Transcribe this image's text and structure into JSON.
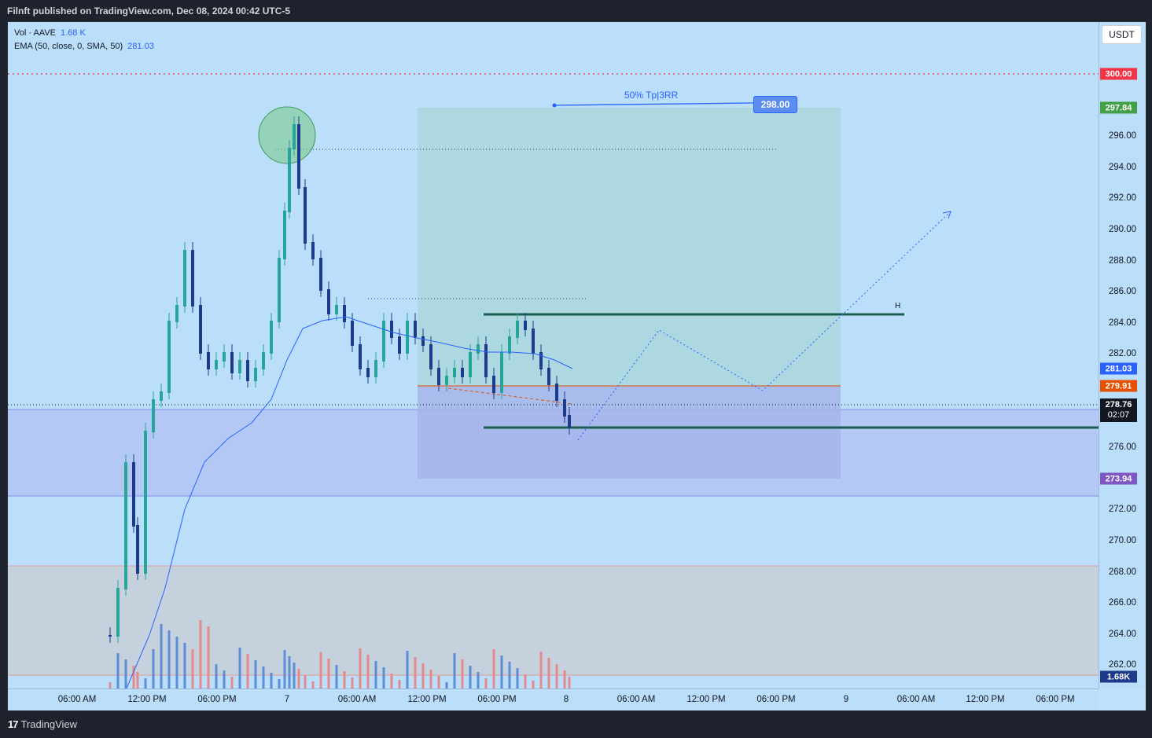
{
  "header": {
    "published": "Filnft published on TradingView.com, Dec 08, 2024 00:42 UTC-5"
  },
  "legend": {
    "vol_label": "Vol · AAVE",
    "vol_value": "1.68 K",
    "ema_label": "EMA (50, close, 0, SMA, 50)",
    "ema_value": "281.03"
  },
  "currency": "USDT",
  "price_ticks": [
    "296.00",
    "294.00",
    "292.00",
    "290.00",
    "288.00",
    "286.00",
    "284.00",
    "282.00",
    "276.00",
    "272.00",
    "270.00",
    "268.00",
    "266.00",
    "264.00",
    "262.00"
  ],
  "price_labels": {
    "p300": "300.00",
    "p297": "297.84",
    "ema": "281.03",
    "p279": "279.91",
    "last": "278.76",
    "countdown": "02:07",
    "p273": "273.94",
    "vol": "1.68K"
  },
  "time_ticks": [
    "06:00 AM",
    "12:00 PM",
    "06:00 PM",
    "7",
    "06:00 AM",
    "12:00 PM",
    "06:00 PM",
    "8",
    "06:00 AM",
    "12:00 PM",
    "06:00 PM",
    "9",
    "06:00 AM",
    "12:00 PM",
    "06:00 PM"
  ],
  "annotations": {
    "tp_text": "50% Tp|3RR",
    "tp_price": "298.00",
    "h_marker": "H"
  },
  "footer": {
    "brand": "TradingView"
  },
  "colors": {
    "bg": "#bbdefb",
    "up": "#26a69a",
    "down": "#1e3a8a",
    "ema": "#2962ff",
    "red": "#f23645"
  }
}
